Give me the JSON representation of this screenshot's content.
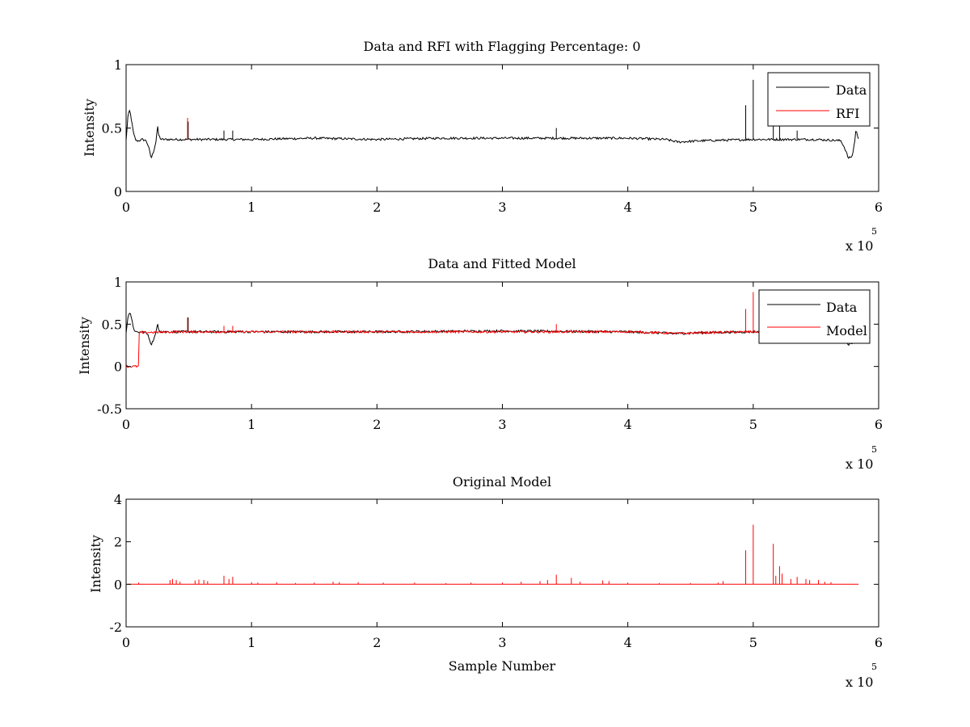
{
  "chart_data": [
    {
      "type": "line",
      "title": "Data and RFI with Flagging Percentage: 0",
      "xlabel": "",
      "ylabel": "Intensity",
      "xlim": [
        0,
        600000
      ],
      "ylim": [
        0,
        1
      ],
      "xticks": [
        0,
        1,
        2,
        3,
        4,
        5,
        6
      ],
      "xtick_labels": [
        "0",
        "1",
        "2",
        "3",
        "4",
        "5",
        "6"
      ],
      "x_multiplier_label": "x 10",
      "x_multiplier_exponent": "5",
      "yticks": [
        0,
        0.5,
        1
      ],
      "ytick_labels": [
        "0",
        "0.5",
        "1"
      ],
      "legend": {
        "position": "top-right",
        "entries": [
          "Data",
          "RFI"
        ]
      },
      "series": [
        {
          "name": "Data",
          "color": "#000000",
          "points": [
            [
              0,
              0.4
            ],
            [
              1500,
              0.6
            ],
            [
              3000,
              0.64
            ],
            [
              4500,
              0.55
            ],
            [
              6000,
              0.45
            ],
            [
              8000,
              0.4
            ],
            [
              10000,
              0.4
            ],
            [
              13000,
              0.41
            ],
            [
              16000,
              0.4
            ],
            [
              18000,
              0.35
            ],
            [
              20000,
              0.26
            ],
            [
              22000,
              0.32
            ],
            [
              24000,
              0.4
            ],
            [
              25000,
              0.52
            ],
            [
              26000,
              0.44
            ],
            [
              28000,
              0.41
            ],
            [
              40000,
              0.41
            ],
            [
              60000,
              0.41
            ],
            [
              100000,
              0.41
            ],
            [
              150000,
              0.42
            ],
            [
              200000,
              0.41
            ],
            [
              250000,
              0.42
            ],
            [
              300000,
              0.42
            ],
            [
              350000,
              0.42
            ],
            [
              400000,
              0.42
            ],
            [
              430000,
              0.41
            ],
            [
              440000,
              0.39
            ],
            [
              460000,
              0.4
            ],
            [
              500000,
              0.41
            ],
            [
              550000,
              0.41
            ],
            [
              570000,
              0.4
            ],
            [
              573000,
              0.34
            ],
            [
              576000,
              0.26
            ],
            [
              579000,
              0.28
            ],
            [
              581000,
              0.4
            ],
            [
              582000,
              0.5
            ],
            [
              583000,
              0.44
            ],
            [
              584000,
              0.4
            ]
          ],
          "spikes": [
            [
              49500,
              0.55
            ],
            [
              78000,
              0.48
            ],
            [
              85000,
              0.48
            ],
            [
              343000,
              0.5
            ],
            [
              494000,
              0.68
            ],
            [
              500000,
              0.88
            ],
            [
              516000,
              0.62
            ],
            [
              521000,
              0.54
            ],
            [
              535000,
              0.48
            ]
          ]
        },
        {
          "name": "RFI",
          "color": "#ff0000",
          "spikes": [
            [
              49000,
              0.58
            ]
          ]
        }
      ]
    },
    {
      "type": "line",
      "title": "Data and Fitted Model",
      "xlabel": "",
      "ylabel": "Intensity",
      "xlim": [
        0,
        600000
      ],
      "ylim": [
        -0.5,
        1
      ],
      "xticks": [
        0,
        1,
        2,
        3,
        4,
        5,
        6
      ],
      "xtick_labels": [
        "0",
        "1",
        "2",
        "3",
        "4",
        "5",
        "6"
      ],
      "x_multiplier_label": "x 10",
      "x_multiplier_exponent": "5",
      "yticks": [
        -0.5,
        0,
        0.5,
        1
      ],
      "ytick_labels": [
        "-0.5",
        "0",
        "0.5",
        "1"
      ],
      "legend": {
        "position": "top-right",
        "entries": [
          "Data",
          "Model"
        ]
      },
      "series": [
        {
          "name": "Data",
          "color": "#000000",
          "points": [
            [
              0,
              0.4
            ],
            [
              1500,
              0.6
            ],
            [
              3000,
              0.64
            ],
            [
              4500,
              0.55
            ],
            [
              6000,
              0.45
            ],
            [
              8000,
              0.4
            ],
            [
              10000,
              0.4
            ],
            [
              13000,
              0.41
            ],
            [
              16000,
              0.4
            ],
            [
              18000,
              0.35
            ],
            [
              20000,
              0.26
            ],
            [
              22000,
              0.32
            ],
            [
              24000,
              0.4
            ],
            [
              25000,
              0.52
            ],
            [
              26000,
              0.44
            ],
            [
              28000,
              0.41
            ],
            [
              40000,
              0.41
            ],
            [
              100000,
              0.41
            ],
            [
              200000,
              0.41
            ],
            [
              300000,
              0.42
            ],
            [
              400000,
              0.41
            ],
            [
              440000,
              0.39
            ],
            [
              460000,
              0.4
            ],
            [
              500000,
              0.41
            ],
            [
              570000,
              0.4
            ],
            [
              573000,
              0.34
            ],
            [
              576000,
              0.26
            ],
            [
              579000,
              0.28
            ],
            [
              581000,
              0.4
            ],
            [
              582000,
              0.5
            ],
            [
              583000,
              0.44
            ],
            [
              584000,
              0.4
            ]
          ],
          "spikes": [
            [
              49500,
              0.58
            ]
          ]
        },
        {
          "name": "Model",
          "color": "#ff0000",
          "points": [
            [
              0,
              0
            ],
            [
              10000,
              0
            ],
            [
              10000,
              0.4
            ],
            [
              40000,
              0.41
            ],
            [
              100000,
              0.41
            ],
            [
              200000,
              0.41
            ],
            [
              300000,
              0.41
            ],
            [
              400000,
              0.41
            ],
            [
              440000,
              0.39
            ],
            [
              460000,
              0.4
            ],
            [
              500000,
              0.41
            ],
            [
              540000,
              0.4
            ]
          ],
          "spikes": [
            [
              49000,
              0.58
            ],
            [
              78000,
              0.48
            ],
            [
              85000,
              0.48
            ],
            [
              343000,
              0.5
            ],
            [
              494000,
              0.68
            ],
            [
              500000,
              0.88
            ]
          ]
        }
      ]
    },
    {
      "type": "line",
      "title": "Original Model",
      "xlabel": "Sample Number",
      "ylabel": "Intensity",
      "xlim": [
        0,
        600000
      ],
      "ylim": [
        -2,
        4
      ],
      "xticks": [
        0,
        1,
        2,
        3,
        4,
        5,
        6
      ],
      "xtick_labels": [
        "0",
        "1",
        "2",
        "3",
        "4",
        "5",
        "6"
      ],
      "x_multiplier_label": "x 10",
      "x_multiplier_exponent": "5",
      "yticks": [
        -2,
        0,
        2,
        4
      ],
      "ytick_labels": [
        "-2",
        "0",
        "2",
        "4"
      ],
      "series": [
        {
          "color": "#ff0000",
          "points": [
            [
              1000,
              0
            ],
            [
              584000,
              0
            ]
          ],
          "spikes": [
            [
              10000,
              0.08
            ],
            [
              35000,
              0.2
            ],
            [
              37000,
              0.25
            ],
            [
              40000,
              0.2
            ],
            [
              43000,
              0.12
            ],
            [
              55000,
              0.18
            ],
            [
              58000,
              0.22
            ],
            [
              62000,
              0.2
            ],
            [
              65000,
              0.15
            ],
            [
              78000,
              0.4
            ],
            [
              82000,
              0.25
            ],
            [
              85000,
              0.35
            ],
            [
              100000,
              0.1
            ],
            [
              105000,
              0.08
            ],
            [
              120000,
              0.1
            ],
            [
              135000,
              0.06
            ],
            [
              150000,
              0.08
            ],
            [
              165000,
              0.12
            ],
            [
              170000,
              0.1
            ],
            [
              185000,
              0.1
            ],
            [
              205000,
              0.08
            ],
            [
              230000,
              0.08
            ],
            [
              255000,
              0.06
            ],
            [
              275000,
              0.08
            ],
            [
              300000,
              0.08
            ],
            [
              315000,
              0.12
            ],
            [
              330000,
              0.15
            ],
            [
              336000,
              0.2
            ],
            [
              343000,
              0.45
            ],
            [
              355000,
              0.3
            ],
            [
              362000,
              0.12
            ],
            [
              380000,
              0.18
            ],
            [
              385000,
              0.15
            ],
            [
              400000,
              0.08
            ],
            [
              425000,
              0.06
            ],
            [
              450000,
              0.06
            ],
            [
              472000,
              0.08
            ],
            [
              476000,
              0.15
            ],
            [
              494000,
              1.6
            ],
            [
              500000,
              2.8
            ],
            [
              516000,
              1.9
            ],
            [
              518000,
              0.4
            ],
            [
              521000,
              0.85
            ],
            [
              523000,
              0.5
            ],
            [
              530000,
              0.25
            ],
            [
              535000,
              0.35
            ],
            [
              542000,
              0.25
            ],
            [
              545000,
              0.2
            ],
            [
              552000,
              0.2
            ],
            [
              557000,
              0.12
            ],
            [
              562000,
              0.1
            ]
          ]
        }
      ]
    }
  ]
}
